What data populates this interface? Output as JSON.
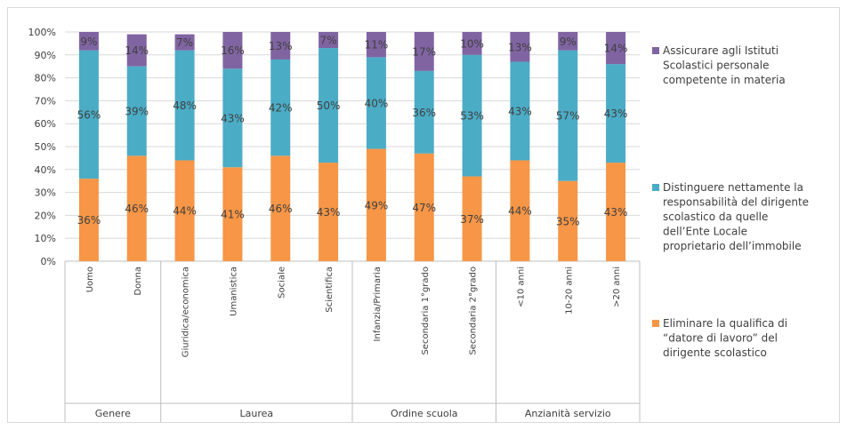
{
  "chart_data": {
    "type": "bar",
    "stacked": true,
    "ylim": [
      0,
      100
    ],
    "y_ticks": [
      "0%",
      "10%",
      "20%",
      "30%",
      "40%",
      "50%",
      "60%",
      "70%",
      "80%",
      "90%",
      "100%"
    ],
    "categories": [
      "Uomo",
      "Donna",
      "Giuridica/economica",
      "Umanistica",
      "Sociale",
      "Scientifica",
      "Infanzia/Primaria",
      "Secondaria 1°grado",
      "Secondaria 2°grado",
      "<10 anni",
      "10-20 anni",
      ">20 anni"
    ],
    "groups": [
      {
        "label": "Genere",
        "count": 2
      },
      {
        "label": "Laurea",
        "count": 4
      },
      {
        "label": "Ordine scuola",
        "count": 3
      },
      {
        "label": "Anzianità servizio",
        "count": 3
      }
    ],
    "series": [
      {
        "name": "Eliminare la qualifica di “datore di lavoro” del dirigente scolastico",
        "legend_lines": [
          "Eliminare la qualifica di",
          "“datore di lavoro” del",
          "dirigente scolastico"
        ],
        "color": "#F79646",
        "values": [
          36,
          46,
          44,
          41,
          46,
          43,
          49,
          47,
          37,
          44,
          35,
          43
        ],
        "labels": [
          "36%",
          "46%",
          "44%",
          "41%",
          "46%",
          "43%",
          "49%",
          "47%",
          "37%",
          "44%",
          "35%",
          "43%"
        ]
      },
      {
        "name": "Distinguere nettamente la responsabilità del dirigente scolastico da quelle dell’Ente Locale proprietario dell’immobile",
        "legend_lines": [
          "Distinguere nettamente la",
          "responsabilità del dirigente",
          "scolastico da quelle",
          "dell’Ente Locale",
          "proprietario dell’immobile"
        ],
        "color": "#4BACC6",
        "values": [
          56,
          39,
          48,
          43,
          42,
          50,
          40,
          36,
          53,
          43,
          57,
          43
        ],
        "labels": [
          "56%",
          "39%",
          "48%",
          "43%",
          "42%",
          "50%",
          "40%",
          "36%",
          "53%",
          "43%",
          "57%",
          "43%"
        ]
      },
      {
        "name": "Assicurare agli Istituti Scolastici personale competente in materia",
        "legend_lines": [
          "Assicurare agli Istituti",
          "Scolastici personale",
          "competente in materia"
        ],
        "color": "#8064A2",
        "values": [
          9,
          14,
          7,
          16,
          13,
          7,
          11,
          17,
          10,
          13,
          9,
          14
        ],
        "labels": [
          "9%",
          "14%",
          "7%",
          "16%",
          "13%",
          "7%",
          "11%",
          "17%",
          "10%",
          "13%",
          "9%",
          "14%"
        ]
      }
    ],
    "legend_order": [
      2,
      1,
      0
    ],
    "legend_position": "right",
    "grid": true
  }
}
